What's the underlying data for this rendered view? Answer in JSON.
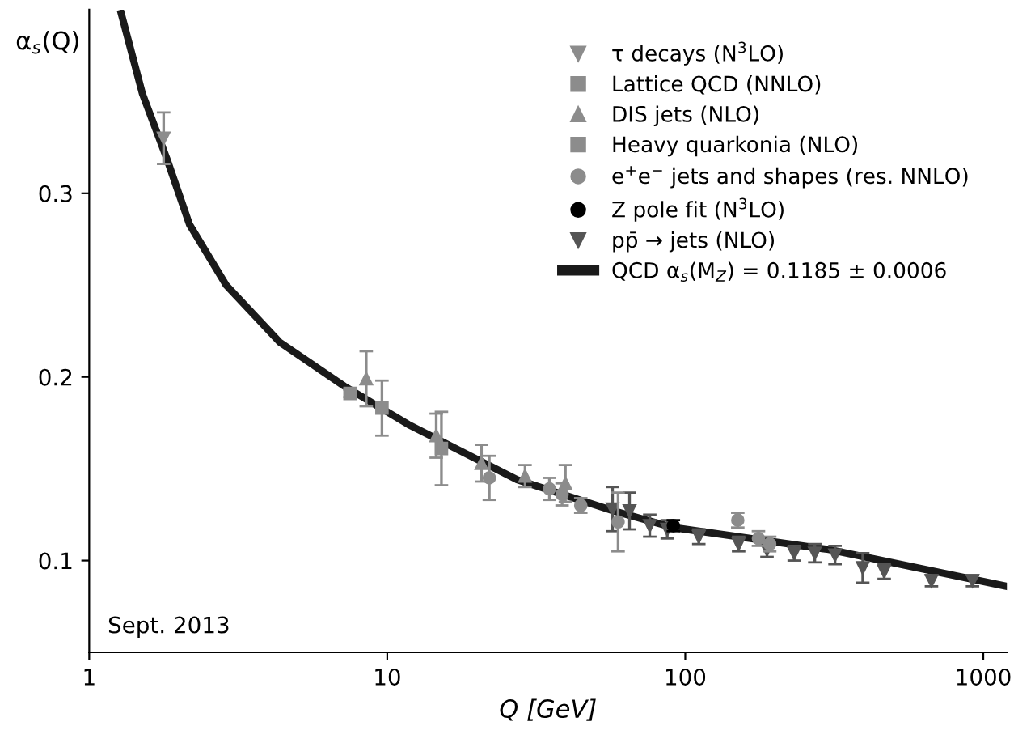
{
  "chart_data": {
    "type": "scatter",
    "xlabel": "Q [GeV]",
    "ylabel": "α$_{s}$(Q)",
    "annotations": [
      "Sept. 2013"
    ],
    "log": "x",
    "xlim": [
      1,
      1200
    ],
    "xticks": [
      1,
      10,
      100,
      1000
    ],
    "ylim": [
      0.05,
      0.4
    ],
    "yticks": [
      0.1,
      0.2,
      0.3
    ],
    "grid": false,
    "legend": "top right",
    "series": [
      {
        "name": "τ decays (N$^{3}$LO)",
        "color": "#8c8c8c",
        "marker": "triangle_down",
        "x": [
          1.777
        ],
        "values": [
          0.33
        ],
        "errors": [
          0.014
        ]
      },
      {
        "name": "Lattice QCD (NNLO)",
        "color": "#8c8c8c",
        "marker": "square",
        "x": [
          7.5
        ],
        "values": [
          0.191
        ],
        "errors": [
          0.002
        ]
      },
      {
        "name": "DIS jets (NLO)",
        "color": "#8c8c8c",
        "marker": "triangle",
        "x": [
          8.5,
          14.6,
          20.7,
          29,
          39.6
        ],
        "values": [
          0.199,
          0.168,
          0.153,
          0.146,
          0.142
        ],
        "errors": [
          0.015,
          0.012,
          0.01,
          0.006,
          0.01
        ]
      },
      {
        "name": "Heavy quarkonia (NLO)",
        "color": "#8c8c8c",
        "marker": "square",
        "x": [
          9.6,
          15.2
        ],
        "values": [
          0.183,
          0.161
        ],
        "errors": [
          0.015,
          0.02
        ]
      },
      {
        "name": "e$^{+}$e$^{−}$ jets and shapes (res. NNLO)",
        "color": "#8c8c8c",
        "marker": "circle",
        "x": [
          22,
          35,
          38.6,
          44.6,
          59.5,
          150,
          176,
          192
        ],
        "values": [
          0.145,
          0.139,
          0.136,
          0.13,
          0.121,
          0.122,
          0.112,
          0.109
        ],
        "errors": [
          0.012,
          0.006,
          0.006,
          0.004,
          0.016,
          0.004,
          0.004,
          0.004
        ]
      },
      {
        "name": "Z pole fit (N$^{3}$LO)",
        "color": "#000000",
        "marker": "circle",
        "x": [
          91.2
        ],
        "values": [
          0.119
        ],
        "errors": [
          0.003
        ]
      },
      {
        "name": "pp̄ → jets (NLO)",
        "color": "#555555",
        "marker": "triangle_down",
        "x": [
          57,
          65,
          76,
          87,
          111,
          151,
          188,
          232,
          272,
          318,
          394,
          465,
          670,
          920
        ],
        "values": [
          0.128,
          0.127,
          0.119,
          0.117,
          0.113,
          0.109,
          0.106,
          0.104,
          0.104,
          0.103,
          0.096,
          0.094,
          0.089,
          0.089
        ],
        "errors": [
          0.012,
          0.01,
          0.006,
          0.005,
          0.004,
          0.004,
          0.004,
          0.004,
          0.005,
          0.005,
          0.008,
          0.004,
          0.003,
          0.003
        ]
      },
      {
        "name": "QCD α$_{s}$(M$_{Z}$) = 0.1185 ± 0.0006",
        "type": "line",
        "color": "#1a1a1a",
        "marker": "none",
        "x": [
          1.28,
          1.51,
          1.82,
          2.17,
          2.88,
          4.35,
          7.17,
          11.8,
          27.3,
          57.5,
          91.2,
          303,
          1195
        ],
        "values": [
          0.398,
          0.354,
          0.319,
          0.283,
          0.25,
          0.219,
          0.195,
          0.174,
          0.144,
          0.127,
          0.118,
          0.106,
          0.086
        ]
      }
    ]
  }
}
